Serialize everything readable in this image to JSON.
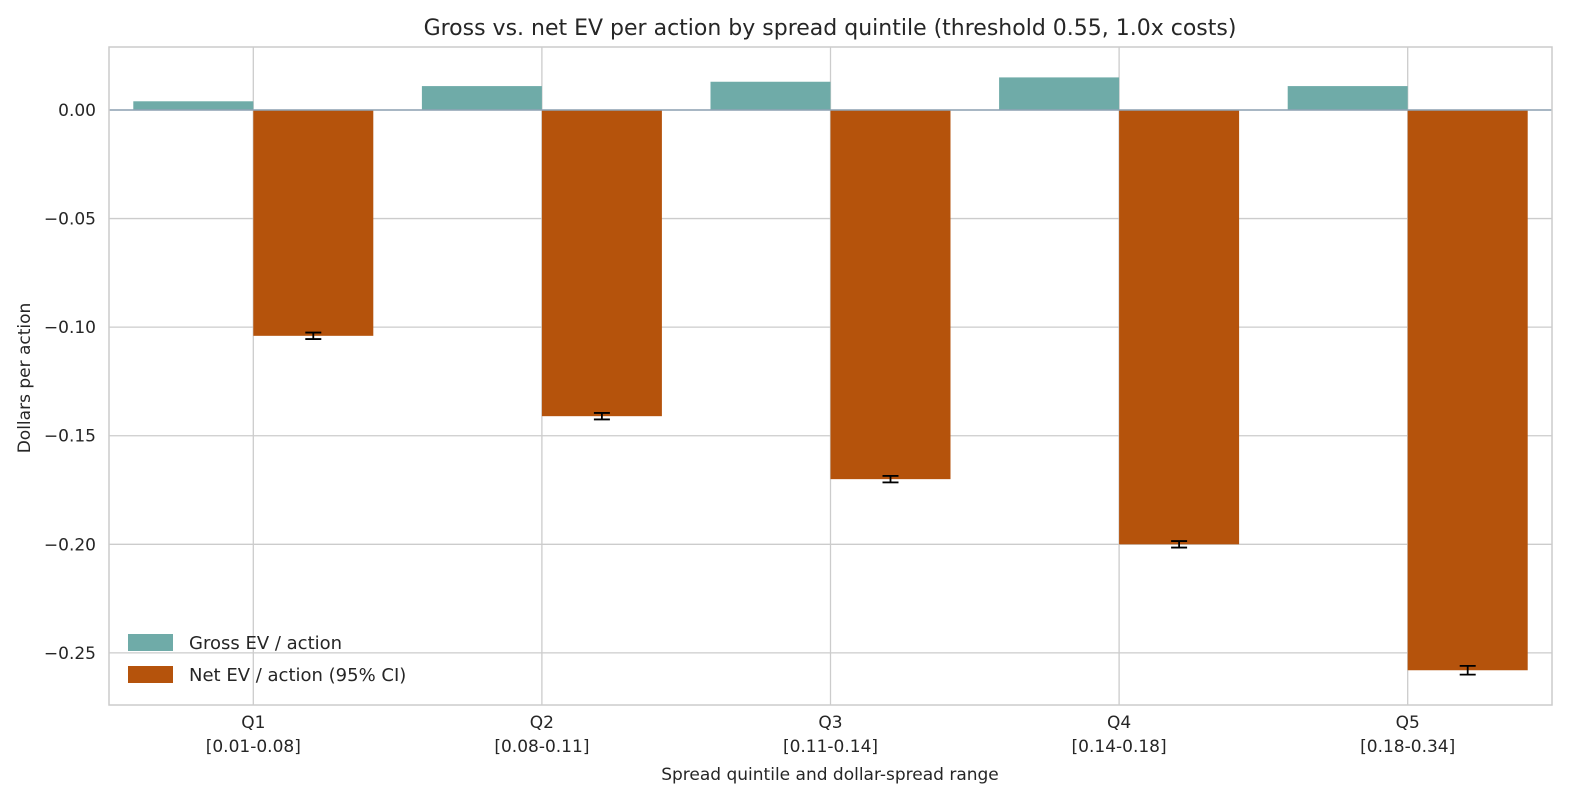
{
  "chart_data": {
    "type": "bar",
    "title": "Gross vs. net EV per action by spread quintile (threshold 0.55, 1.0x costs)",
    "xlabel": "Spread quintile and dollar-spread range",
    "ylabel": "Dollars per action",
    "categories": [
      {
        "name": "Q1",
        "range": "[0.01-0.08]"
      },
      {
        "name": "Q2",
        "range": "[0.08-0.11]"
      },
      {
        "name": "Q3",
        "range": "[0.11-0.14]"
      },
      {
        "name": "Q4",
        "range": "[0.14-0.18]"
      },
      {
        "name": "Q5",
        "range": "[0.18-0.34]"
      }
    ],
    "series": [
      {
        "name": "Gross EV / action",
        "color": "#6faba8",
        "values": [
          0.004,
          0.011,
          0.013,
          0.015,
          0.011
        ]
      },
      {
        "name": "Net EV / action (95% CI)",
        "color": "#b5530c",
        "values": [
          -0.104,
          -0.141,
          -0.17,
          -0.2,
          -0.258
        ],
        "ci_low": [
          -0.1055,
          -0.1425,
          -0.1715,
          -0.2015,
          -0.26
        ],
        "ci_high": [
          -0.1025,
          -0.1395,
          -0.1685,
          -0.1985,
          -0.256
        ]
      }
    ],
    "yticks": [
      0.0,
      -0.05,
      -0.1,
      -0.15,
      -0.2,
      -0.25
    ],
    "ytick_labels": [
      "0.00",
      "−0.05",
      "−0.10",
      "−0.15",
      "−0.20",
      "−0.25"
    ],
    "ylim": [
      -0.274,
      0.029
    ],
    "grid": true,
    "legend_position": "lower-left"
  }
}
